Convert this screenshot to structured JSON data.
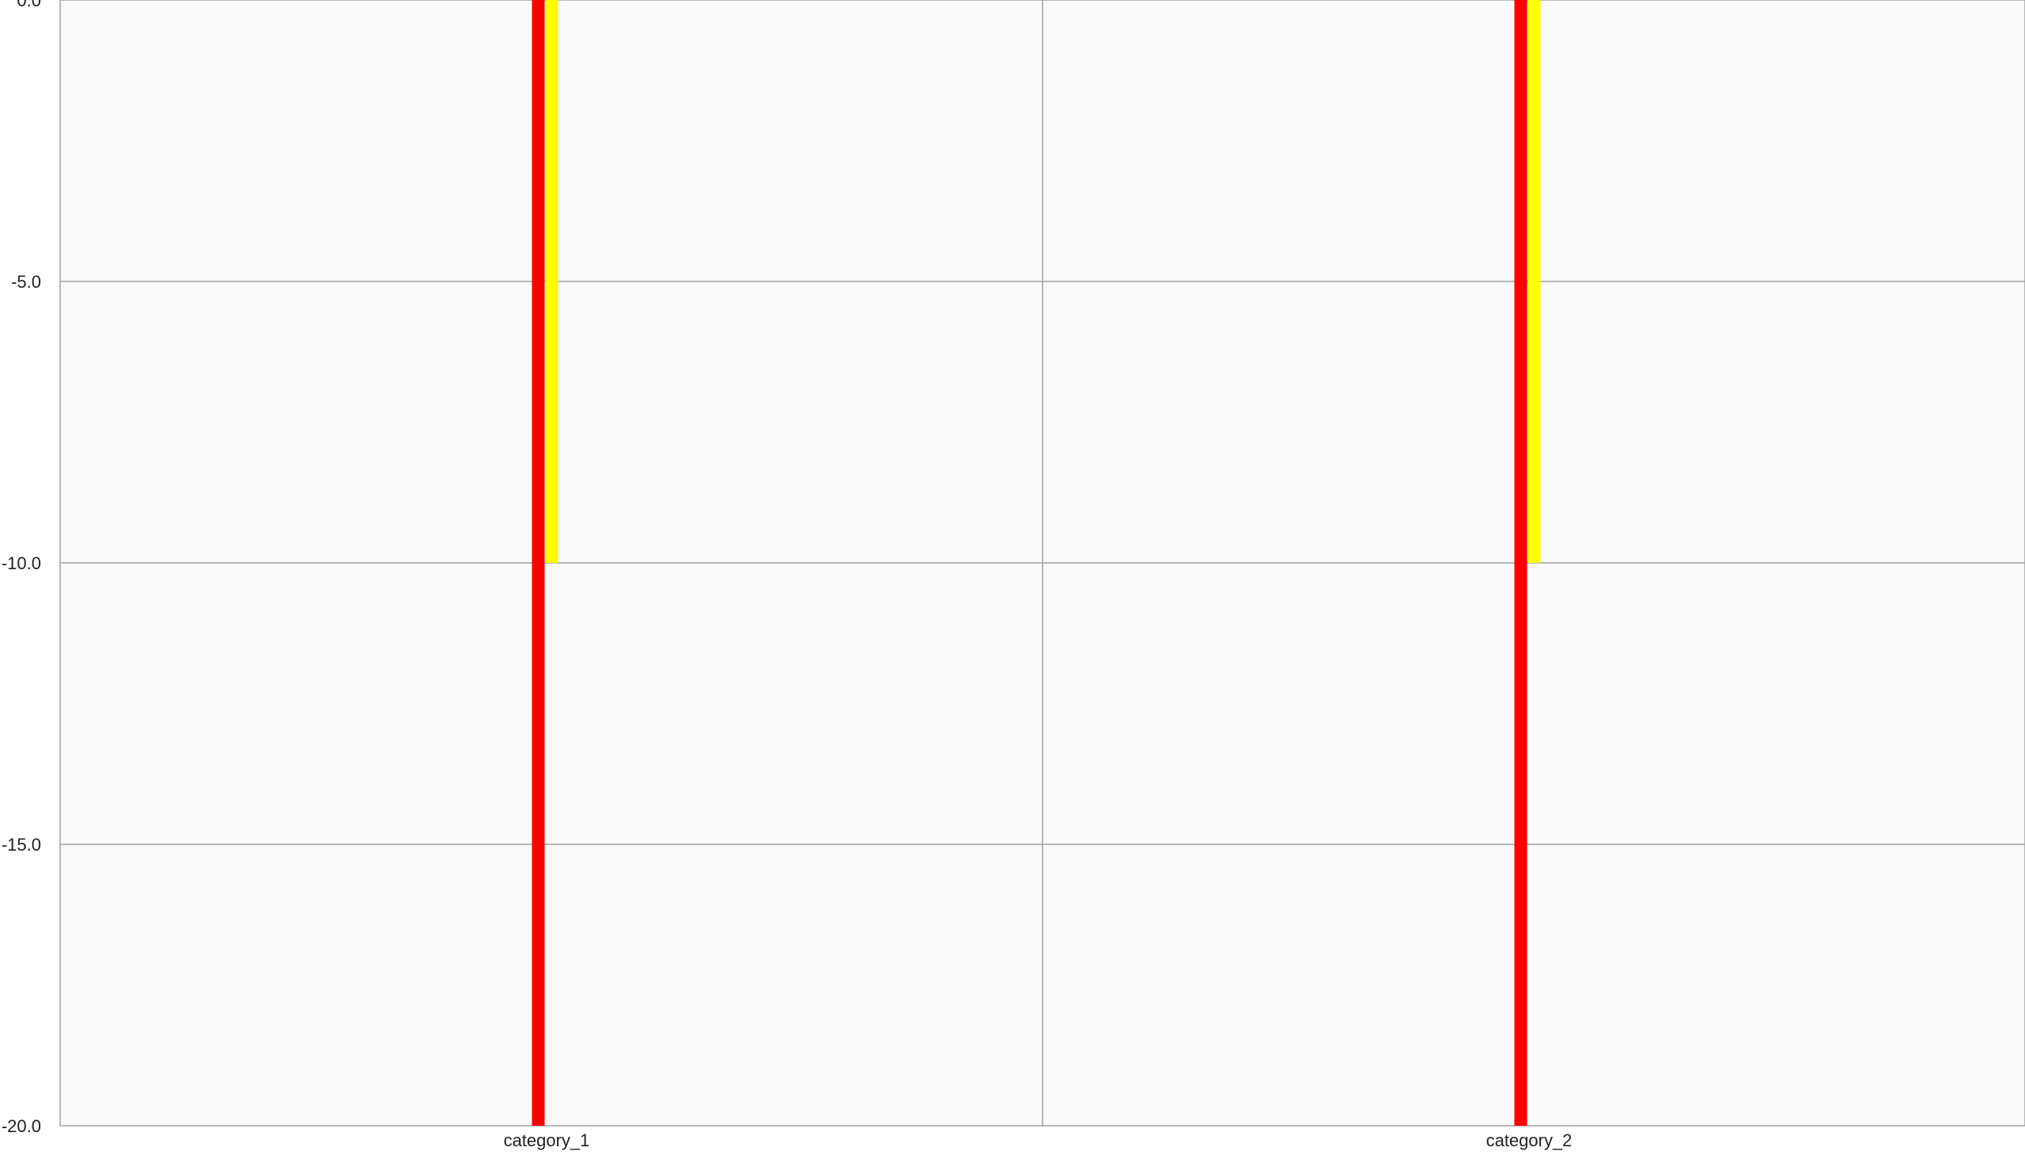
{
  "chart_data": {
    "type": "bar",
    "categories": [
      "category_1",
      "category_2"
    ],
    "series": [
      {
        "values": [
          -20,
          -20
        ],
        "color": "#ff0000"
      },
      {
        "values": [
          -10,
          -10
        ],
        "color": "#ffff00"
      }
    ],
    "ylim": [
      -20,
      0
    ],
    "yticks": [
      "0.0",
      "-5.0",
      "-10.0",
      "-15.0",
      "-20.0"
    ],
    "grid": true,
    "legend": "none"
  },
  "colors": {
    "plot_background": "#fafafa",
    "grid": "#a0a0a0"
  }
}
